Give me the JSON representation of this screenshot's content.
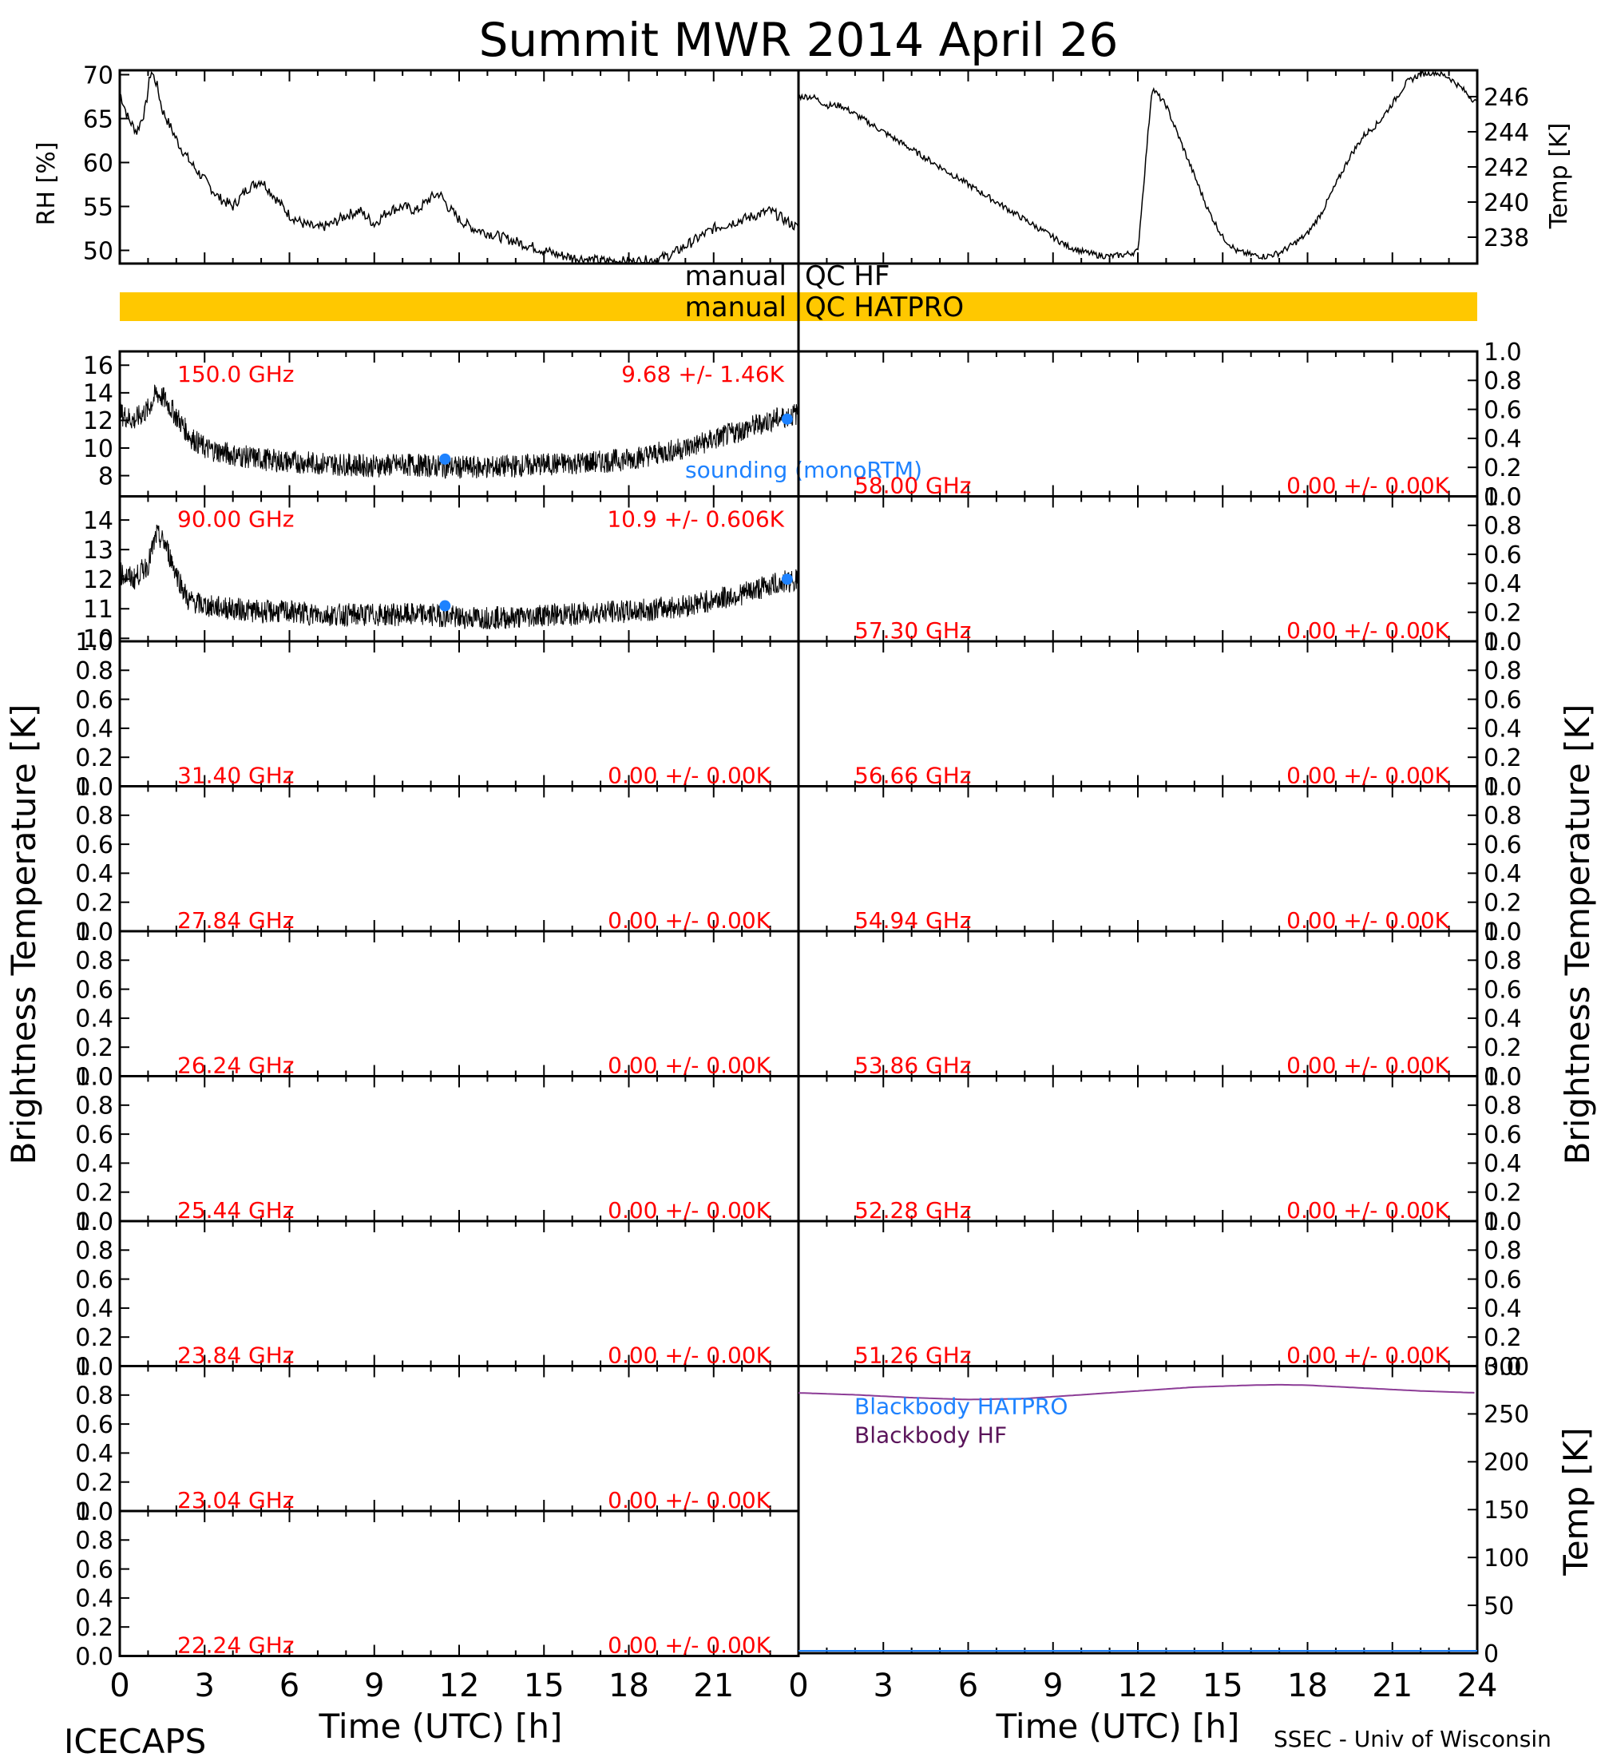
{
  "figure": {
    "title": "Summit MWR 2014 April 26",
    "footer_left": "ICECAPS",
    "footer_right": "SSEC - Univ of Wisconsin",
    "xlabel": "Time (UTC) [h]",
    "ylabel_bt": "Brightness Temperature [K]",
    "sounding_label": "sounding (monoRTM)",
    "colors": {
      "axis": "#000000",
      "trace": "#000000",
      "freq_label": "#ff0000",
      "sounding": "#1e82ff",
      "qc_bar": "#ffc800",
      "blackbody_hatpro": "#1e82ff",
      "blackbody_hf": "#5a145a",
      "blackbody_line": "#8c3c96"
    }
  },
  "chart_data": [
    {
      "id": "rh",
      "type": "line",
      "ylabel": "RH [%]",
      "ylim": [
        48.5,
        70.5
      ],
      "yticks": [
        50,
        55,
        60,
        65,
        70
      ],
      "xlim": [
        0,
        12
      ],
      "x": [
        0,
        0.3,
        0.6,
        0.9,
        1.1,
        1.3,
        1.5,
        1.8,
        2.1,
        2.5,
        3.0,
        3.5,
        4.0,
        4.5,
        5.0,
        5.5,
        6.0,
        6.5,
        7.0,
        7.5,
        8.0,
        8.5,
        9.0,
        9.5,
        10.0,
        10.5,
        11.0,
        11.3,
        11.6,
        12.0
      ],
      "y": [
        68,
        65,
        63.5,
        66,
        70.5,
        69,
        66,
        64,
        62,
        60,
        58,
        56,
        55,
        57,
        58,
        56,
        54,
        53,
        52.5,
        53,
        54,
        54.5,
        53,
        54.5,
        55,
        54.5,
        56,
        56.5,
        55,
        53.5
      ]
    },
    {
      "id": "temp",
      "type": "line",
      "ylabel": "Temp [K]",
      "ylim": [
        236.5,
        247.5
      ],
      "yticks": [
        238,
        240,
        242,
        244,
        246
      ],
      "xlim": [
        12,
        24
      ],
      "x": [
        12.0,
        12.5,
        13.0,
        13.5,
        14.0,
        14.5,
        15.0,
        15.5,
        16.0,
        16.5,
        17.0,
        17.5,
        18.0,
        18.5,
        19.0,
        19.5,
        20.0,
        20.5,
        21.0,
        21.5,
        22.0,
        22.5,
        23.0,
        23.5,
        24.0
      ],
      "y": [
        247,
        246.5,
        245.5,
        243.5,
        241.5,
        239.5,
        238,
        237.2,
        237,
        236.9,
        237.1,
        237.6,
        238.2,
        239.4,
        241,
        242.6,
        243.8,
        244.5,
        245.6,
        246.8,
        247.3,
        247.4,
        247.1,
        246.4,
        245.6
      ]
    },
    {
      "id": "rh-continued",
      "type": "line",
      "ylabel": "",
      "ylim": [
        48.5,
        70.5
      ],
      "xlim": [
        12,
        24
      ],
      "x": [
        12.0,
        12.5,
        13.0,
        13.5,
        14.0,
        14.5,
        15.0,
        15.5,
        16.0,
        16.5,
        17.0,
        17.5,
        18.0,
        18.5,
        19.0,
        19.5,
        20.0,
        20.5,
        21.0,
        21.5,
        22.0,
        22.5,
        23.0,
        23.5,
        24.0
      ],
      "y": [
        53.5,
        52.5,
        52,
        51.5,
        51,
        50.5,
        50,
        49.5,
        49.2,
        49,
        48.8,
        48.8,
        48.7,
        48.8,
        49,
        49.5,
        50.5,
        51.5,
        52.5,
        53,
        53.5,
        54,
        54.5,
        53.5,
        52.5
      ]
    },
    {
      "id": "temp-early",
      "type": "line",
      "ylabel": "",
      "ylim": [
        236.5,
        247.5
      ],
      "xlim": [
        0,
        12
      ],
      "x": [
        0,
        0.5,
        1,
        1.5,
        2,
        2.5,
        3,
        3.5,
        4,
        4.5,
        5,
        5.5,
        6,
        6.5,
        7,
        7.5,
        8,
        8.5,
        9,
        9.5,
        10,
        10.5,
        11,
        11.5,
        12
      ],
      "y": [
        246,
        246,
        245.5,
        245.5,
        245,
        244.5,
        244,
        243.5,
        243,
        242.5,
        242,
        241.5,
        241,
        240.5,
        240,
        239.5,
        239,
        238.5,
        238,
        237.5,
        237.2,
        237,
        236.9,
        237,
        237.2
      ]
    }
  ],
  "channels": {
    "left": [
      {
        "freq": "150.0 GHz",
        "stat": "9.68 +/-  1.46K",
        "ylim": [
          6.5,
          17
        ],
        "yticks": [
          8,
          10,
          12,
          14,
          16
        ],
        "has_data": true,
        "x": [
          0,
          0.5,
          1,
          1.3,
          1.6,
          2,
          2.5,
          3,
          4,
          5,
          6,
          7,
          8,
          9,
          10,
          11,
          12,
          13,
          14,
          15,
          16,
          17,
          18,
          19,
          20,
          21,
          22,
          23,
          24
        ],
        "y": [
          12.5,
          12,
          12.8,
          14,
          13.5,
          12.3,
          10.8,
          10,
          9.5,
          9.2,
          9,
          8.9,
          8.8,
          8.7,
          8.8,
          8.7,
          8.6,
          8.6,
          8.7,
          8.8,
          8.9,
          9,
          9.2,
          9.6,
          10,
          10.6,
          11.3,
          12,
          12.5
        ],
        "sounding": [
          [
            11.5,
            9.2
          ],
          [
            23.6,
            12.1
          ]
        ]
      },
      {
        "freq": "90.00 GHz",
        "stat": "10.9 +/- 0.606K",
        "ylim": [
          9.9,
          14.8
        ],
        "yticks": [
          10,
          11,
          12,
          13,
          14
        ],
        "has_data": true,
        "x": [
          0,
          0.5,
          1,
          1.3,
          1.6,
          2,
          2.4,
          3,
          4,
          5,
          6,
          7,
          8,
          9,
          10,
          11,
          12,
          13,
          14,
          15,
          16,
          17,
          18,
          19,
          20,
          21,
          22,
          23,
          24
        ],
        "y": [
          12.2,
          12,
          12.5,
          13.5,
          13.2,
          12.2,
          11.3,
          11.1,
          11,
          10.9,
          10.9,
          10.8,
          10.8,
          10.8,
          10.8,
          10.8,
          10.7,
          10.7,
          10.7,
          10.8,
          10.8,
          10.9,
          10.9,
          11,
          11.1,
          11.3,
          11.5,
          11.8,
          12
        ],
        "sounding": [
          [
            11.5,
            11.1
          ],
          [
            23.6,
            12.0
          ]
        ]
      },
      {
        "freq": "31.40 GHz",
        "stat": "0.00 +/-  0.00K",
        "has_data": false
      },
      {
        "freq": "27.84 GHz",
        "stat": "0.00 +/-  0.00K",
        "has_data": false
      },
      {
        "freq": "26.24 GHz",
        "stat": "0.00 +/-  0.00K",
        "has_data": false
      },
      {
        "freq": "25.44 GHz",
        "stat": "0.00 +/-  0.00K",
        "has_data": false
      },
      {
        "freq": "23.84 GHz",
        "stat": "0.00 +/-  0.00K",
        "has_data": false
      },
      {
        "freq": "23.04 GHz",
        "stat": "0.00 +/-  0.00K",
        "has_data": false
      },
      {
        "freq": "22.24 GHz",
        "stat": "0.00 +/-  0.00K",
        "has_data": false
      }
    ],
    "right": [
      {
        "freq": "58.00 GHz",
        "stat": "0.00 +/-  0.00K"
      },
      {
        "freq": "57.30 GHz",
        "stat": "0.00 +/-  0.00K"
      },
      {
        "freq": "56.66 GHz",
        "stat": "0.00 +/-  0.00K"
      },
      {
        "freq": "54.94 GHz",
        "stat": "0.00 +/-  0.00K"
      },
      {
        "freq": "53.86 GHz",
        "stat": "0.00 +/-  0.00K"
      },
      {
        "freq": "52.28 GHz",
        "stat": "0.00 +/-  0.00K"
      },
      {
        "freq": "51.26 GHz",
        "stat": "0.00 +/-  0.00K"
      }
    ],
    "empty_yticks": [
      "0.0",
      "0.2",
      "0.4",
      "0.6",
      "0.8",
      "1.0"
    ]
  },
  "qc": {
    "label_manual": "manual",
    "hf_label": "QC HF",
    "hatpro_label": "QC HATPRO"
  },
  "blackbody": {
    "ylabel": "Temp [K]",
    "ylim": [
      0,
      300
    ],
    "yticks": [
      0,
      50,
      100,
      150,
      200,
      250,
      300
    ],
    "legend_hatpro": "Blackbody HATPRO",
    "legend_hf": "Blackbody HF",
    "x": [
      0,
      2,
      4,
      6,
      8,
      10,
      12,
      14,
      16,
      17,
      18,
      20,
      22,
      24
    ],
    "y": [
      272,
      270,
      267,
      265,
      266,
      270,
      274,
      278,
      280,
      280.5,
      280,
      277,
      274,
      272
    ]
  },
  "xticks": [
    "0",
    "3",
    "6",
    "9",
    "12",
    "15",
    "18",
    "21"
  ],
  "xticks_right": [
    "0",
    "3",
    "6",
    "9",
    "12",
    "15",
    "18",
    "21",
    "24"
  ]
}
